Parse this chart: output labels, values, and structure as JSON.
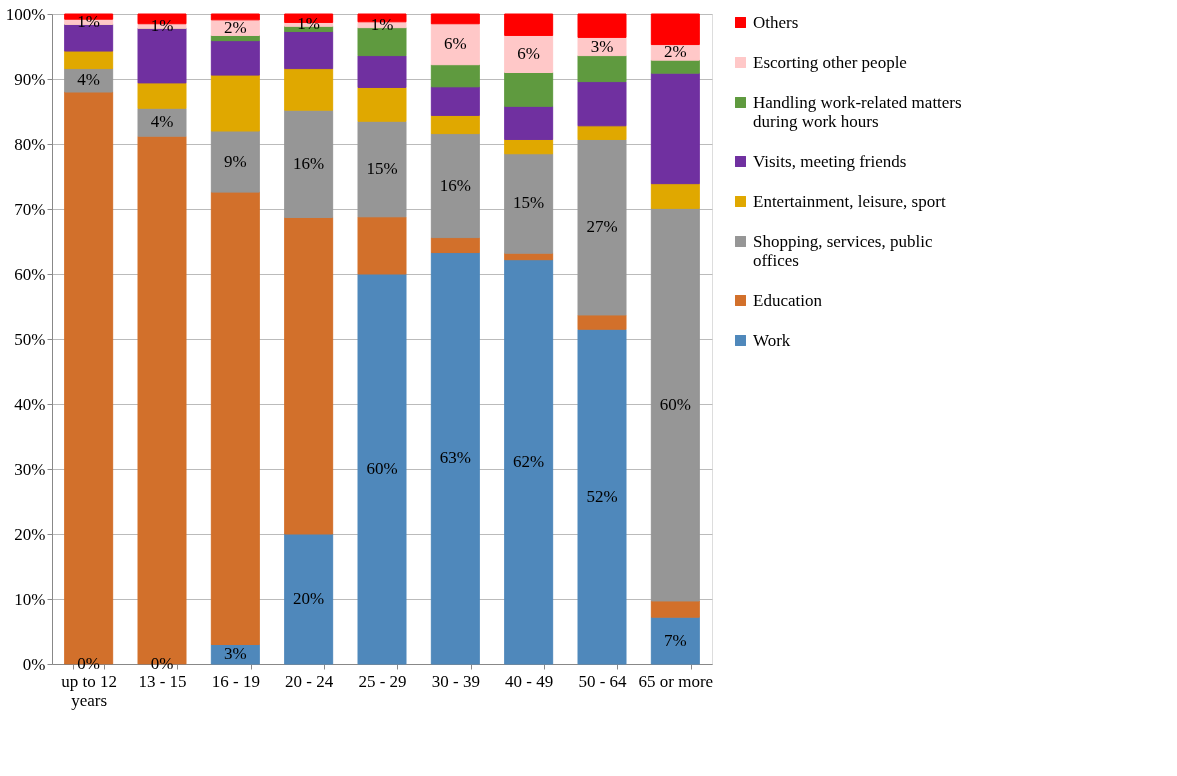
{
  "chart_data": {
    "type": "bar",
    "stacked": true,
    "categories": [
      "up to 12 years",
      "13 - 15",
      "16 - 19",
      "20 - 24",
      "25 - 29",
      "30 - 39",
      "40 - 49",
      "50 - 64",
      "65 or more"
    ],
    "series": [
      {
        "name": "Work",
        "color": "#4f88bb",
        "values": [
          0,
          0,
          3.0,
          20.0,
          60.0,
          63.3,
          62.2,
          51.5,
          7.2
        ],
        "value_labels": [
          "0%",
          "0%",
          "3%",
          "20%",
          "60%",
          "63%",
          "62%",
          "52%",
          "7%"
        ]
      },
      {
        "name": "Education",
        "color": "#d2702b",
        "values": [
          88.0,
          81.2,
          69.6,
          48.7,
          8.8,
          2.3,
          1.0,
          2.2,
          2.5
        ]
      },
      {
        "name": "Shopping, services, public offices",
        "color": "#969696",
        "values": [
          3.6,
          4.3,
          9.4,
          16.5,
          14.7,
          16.0,
          15.3,
          27.0,
          60.4
        ],
        "value_labels": [
          "4%",
          "4%",
          "9%",
          "16%",
          "15%",
          "16%",
          "15%",
          "27%",
          "60%"
        ]
      },
      {
        "name": "Entertainment, leisure, sport",
        "color": "#e0a800",
        "values": [
          2.7,
          3.9,
          8.6,
          6.4,
          5.2,
          2.8,
          2.2,
          2.1,
          3.8
        ]
      },
      {
        "name": "Visits, meeting friends",
        "color": "#7030a0",
        "values": [
          4.1,
          8.4,
          5.3,
          5.7,
          4.9,
          4.4,
          5.1,
          6.8,
          17.0
        ]
      },
      {
        "name": "Handling work-related matters during work hours",
        "color": "#5f9a3f",
        "values": [
          0,
          0,
          0.8,
          0.8,
          4.3,
          3.4,
          5.2,
          4.0,
          2.0
        ]
      },
      {
        "name": "Escorting other people",
        "color": "#ffc8c8",
        "values": [
          0.8,
          0.7,
          2.4,
          0.6,
          0.9,
          6.3,
          5.7,
          2.8,
          2.4
        ],
        "value_labels": [
          "1%",
          "1%",
          "2%",
          "1%",
          "1%",
          "6%",
          "6%",
          "3%",
          "2%"
        ]
      },
      {
        "name": "Others",
        "color": "#ff0000",
        "values": [
          0.8,
          1.5,
          0.9,
          1.3,
          1.2,
          1.5,
          3.3,
          3.6,
          4.7
        ]
      }
    ],
    "ylim": [
      0,
      100
    ],
    "yticks": [
      {
        "value": 0,
        "label": "0%"
      },
      {
        "value": 10,
        "label": "10%"
      },
      {
        "value": 20,
        "label": "20%"
      },
      {
        "value": 30,
        "label": "30%"
      },
      {
        "value": 40,
        "label": "40%"
      },
      {
        "value": 50,
        "label": "50%"
      },
      {
        "value": 60,
        "label": "60%"
      },
      {
        "value": 70,
        "label": "70%"
      },
      {
        "value": 80,
        "label": "80%"
      },
      {
        "value": 90,
        "label": "90%"
      },
      {
        "value": 100,
        "label": "100%"
      }
    ],
    "grid": "y",
    "legend": "right"
  }
}
